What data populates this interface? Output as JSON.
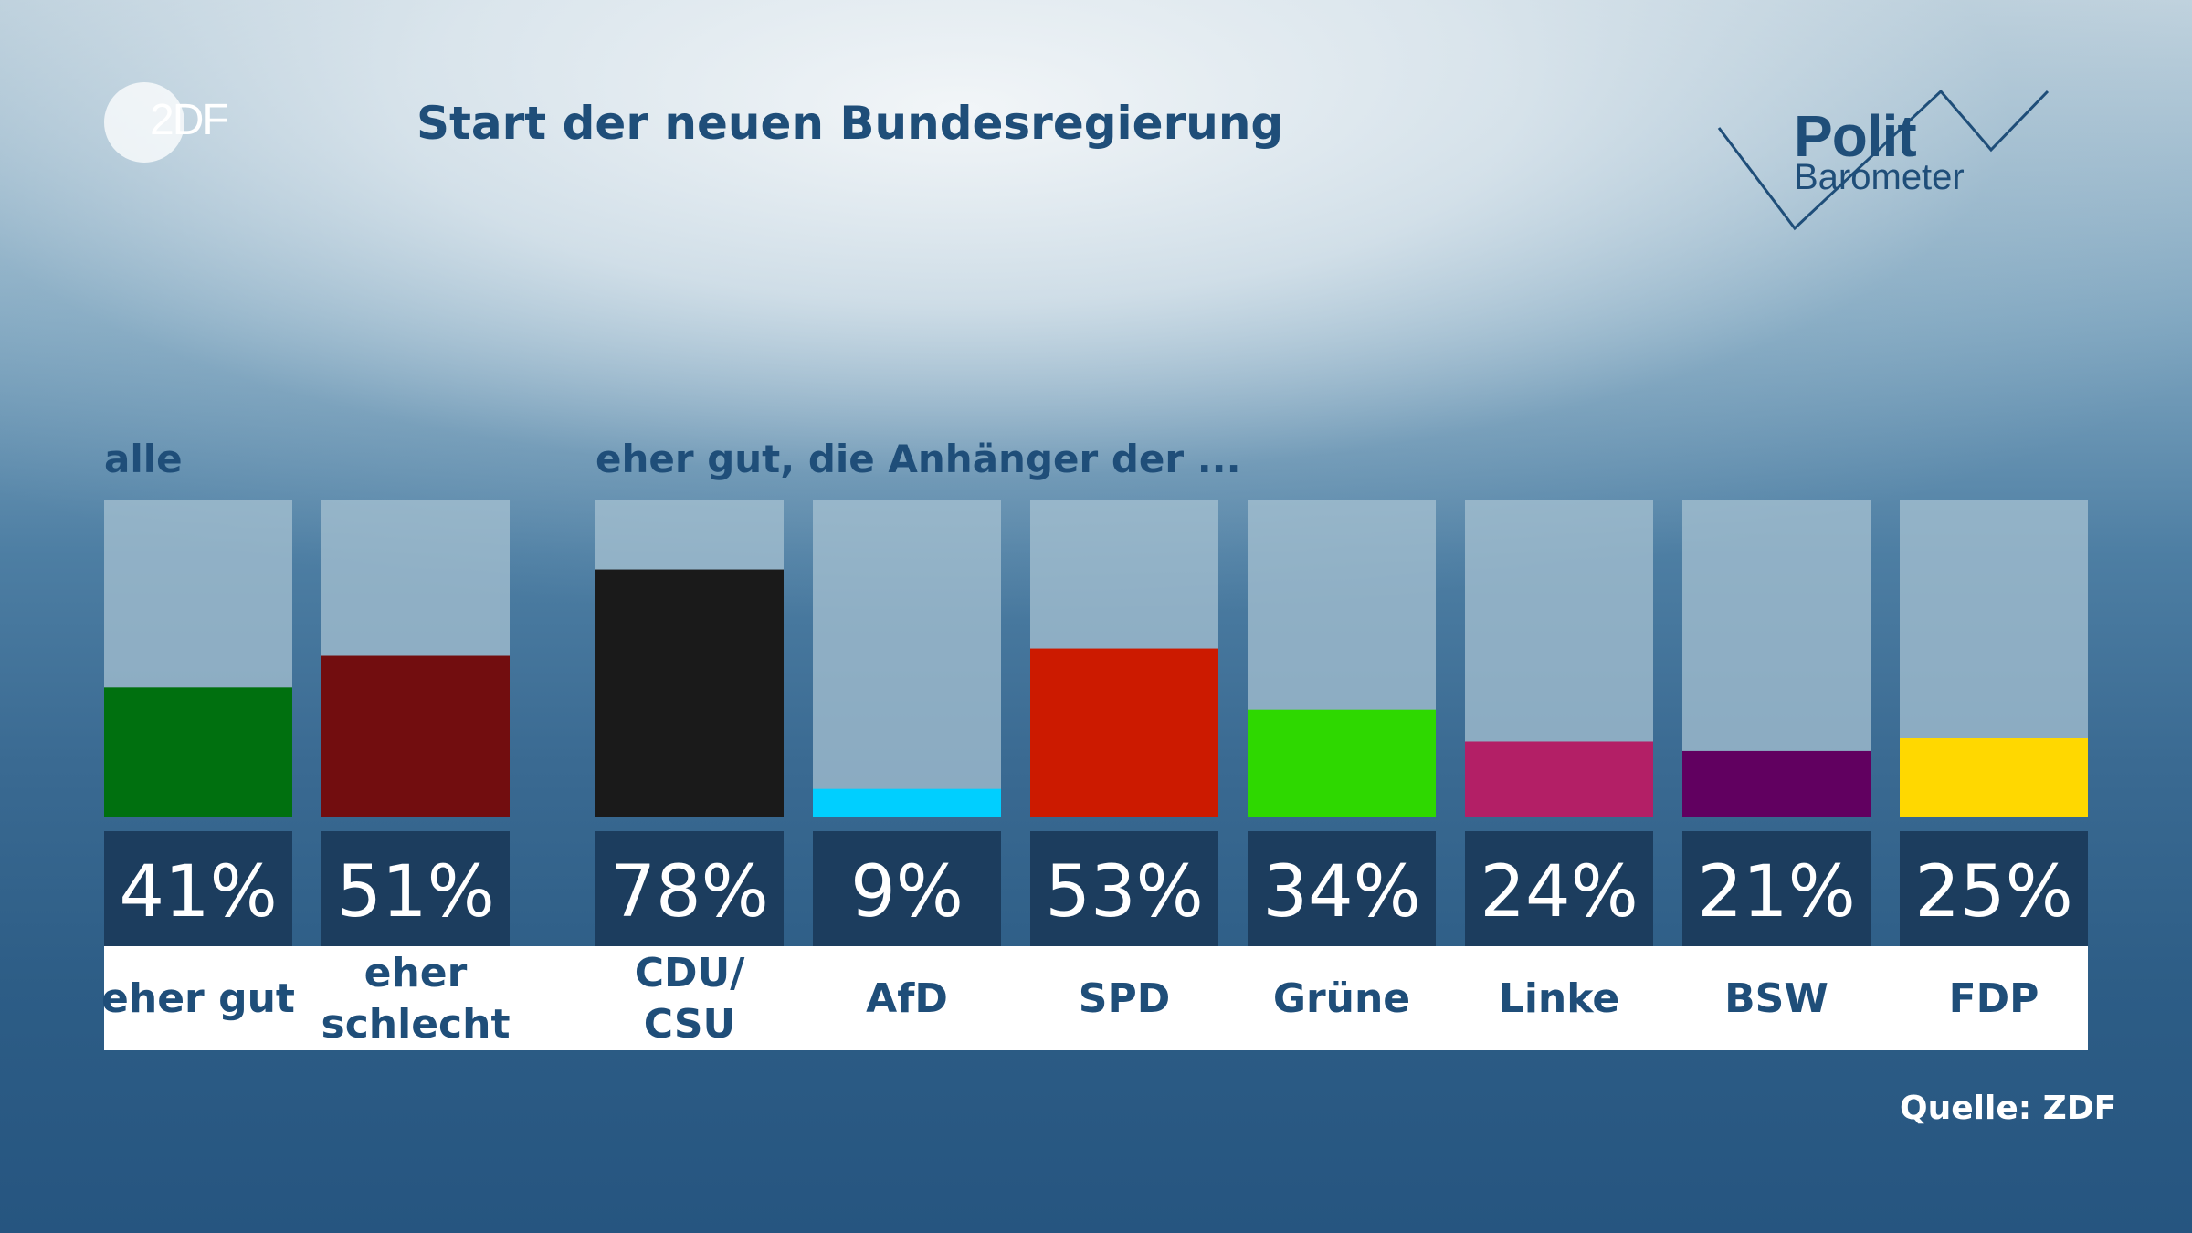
{
  "header": {
    "logo_text": "2DF",
    "title": "Start der neuen Bundesregierung",
    "brand_line1": "Polit",
    "brand_line2": "Barometer"
  },
  "groups": {
    "left_label": "alle",
    "right_label": "eher gut, die Anhänger der ..."
  },
  "footer": {
    "source": "Quelle: ZDF"
  },
  "colors": {
    "text_dark_blue": "#1f4e79",
    "track": "#a7c1d1",
    "value_box": "#1c3d5e"
  },
  "chart_data": {
    "type": "bar",
    "title": "Start der neuen Bundesregierung",
    "unit": "%",
    "ylim": [
      0,
      100
    ],
    "categories": [
      "eher gut",
      "eher schlecht",
      "CDU/ CSU",
      "AfD",
      "SPD",
      "Grüne",
      "Linke",
      "BSW",
      "FDP"
    ],
    "label_lines": [
      [
        "eher gut"
      ],
      [
        "eher",
        "schlecht"
      ],
      [
        "CDU/",
        "CSU"
      ],
      [
        "AfD"
      ],
      [
        "SPD"
      ],
      [
        "Grüne"
      ],
      [
        "Linke"
      ],
      [
        "BSW"
      ],
      [
        "FDP"
      ]
    ],
    "values": [
      41,
      51,
      78,
      9,
      53,
      34,
      24,
      21,
      25
    ],
    "value_labels": [
      "41%",
      "51%",
      "78%",
      "9%",
      "53%",
      "34%",
      "24%",
      "21%",
      "25%"
    ],
    "bar_colors": [
      "#00700f",
      "#720d0f",
      "#1a1a1a",
      "#00cfff",
      "#cc1a00",
      "#2ed800",
      "#b31f66",
      "#610060",
      "#ffd800"
    ],
    "groups": [
      {
        "label": "alle",
        "bars": [
          0,
          1
        ]
      },
      {
        "label": "eher gut, die Anhänger der ...",
        "bars": [
          2,
          3,
          4,
          5,
          6,
          7,
          8
        ]
      }
    ]
  }
}
